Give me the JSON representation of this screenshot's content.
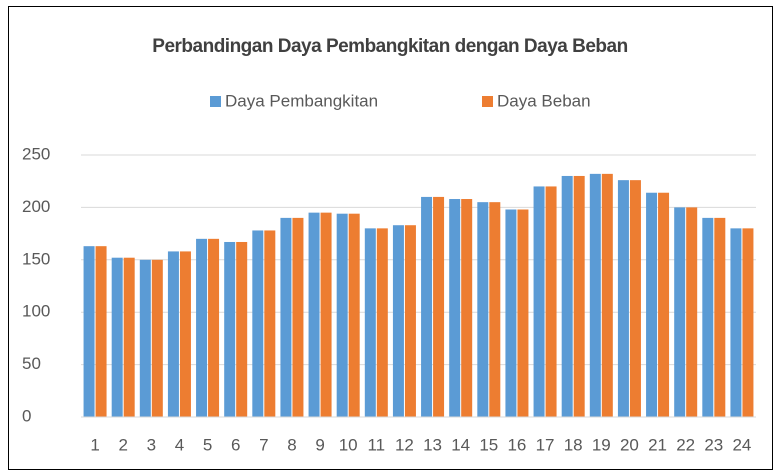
{
  "chart_data": {
    "type": "bar",
    "title": "Perbandingan Daya Pembangkitan dengan Daya Beban",
    "categories": [
      "1",
      "2",
      "3",
      "4",
      "5",
      "6",
      "7",
      "8",
      "9",
      "10",
      "11",
      "12",
      "13",
      "14",
      "15",
      "16",
      "17",
      "18",
      "19",
      "20",
      "21",
      "22",
      "23",
      "24"
    ],
    "series": [
      {
        "name": "Daya Pembangkitan",
        "color": "#5b9bd5",
        "values": [
          163,
          152,
          150,
          158,
          170,
          167,
          178,
          190,
          195,
          194,
          180,
          183,
          210,
          208,
          205,
          198,
          220,
          230,
          232,
          226,
          214,
          200,
          190,
          180
        ]
      },
      {
        "name": "Daya Beban",
        "color": "#ed7d31",
        "values": [
          163,
          152,
          150,
          158,
          170,
          167,
          178,
          190,
          195,
          194,
          180,
          183,
          210,
          208,
          205,
          198,
          220,
          230,
          232,
          226,
          214,
          200,
          190,
          180
        ]
      }
    ],
    "ylim": [
      0,
      250
    ],
    "yticks": [
      0,
      50,
      100,
      150,
      200,
      250
    ],
    "grid": true,
    "legend": "top"
  }
}
